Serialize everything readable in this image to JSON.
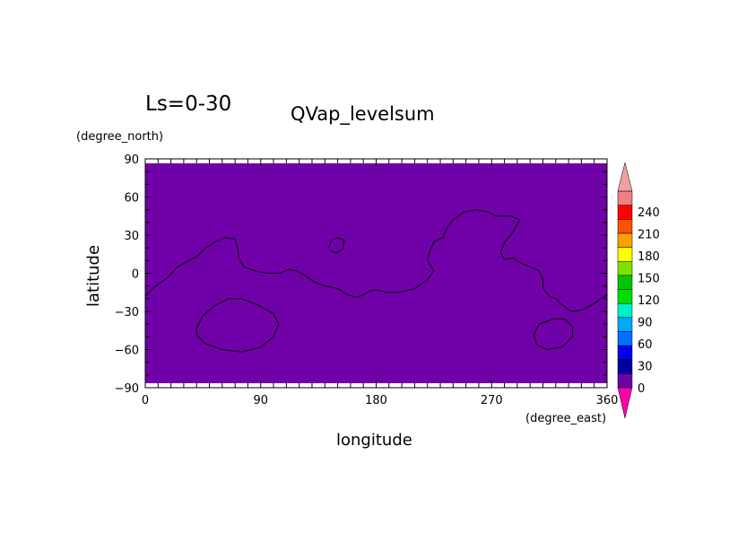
{
  "chart_data": {
    "type": "heatmap",
    "title": "QVap_levelsum",
    "subtitle": "Ls=0-30",
    "xlabel": "longitude",
    "ylabel": "latitude",
    "xunit": "(degree_east)",
    "yunit": "(degree_north)",
    "xlim": [
      0,
      360
    ],
    "ylim": [
      -90,
      90
    ],
    "xticks": [
      "0",
      "90",
      "180",
      "270",
      "360"
    ],
    "yticks": [
      "90",
      "60",
      "30",
      "0",
      "−30",
      "−60",
      "−90"
    ],
    "field_value": "0",
    "field_color": "#7000a8",
    "colorbar": {
      "labels": [
        "0",
        "30",
        "60",
        "90",
        "120",
        "150",
        "180",
        "210",
        "240"
      ],
      "colors": [
        "#7000a8",
        "#0000a0",
        "#0000f0",
        "#0070ff",
        "#00a8ff",
        "#00f0c8",
        "#00e000",
        "#00c800",
        "#80e000",
        "#ffff00",
        "#ffa000",
        "#ff5000",
        "#ff0000",
        "#f08080"
      ],
      "under_color": "#ff00aa",
      "over_color": "#f0a0a0"
    },
    "contours": [
      {
        "name": "continent-outline",
        "points": [
          [
            0,
            -18
          ],
          [
            8,
            -10
          ],
          [
            18,
            -3
          ],
          [
            25,
            5
          ],
          [
            32,
            9
          ],
          [
            40,
            13
          ],
          [
            47,
            20
          ],
          [
            55,
            25
          ],
          [
            63,
            28
          ],
          [
            70,
            27
          ],
          [
            72,
            20
          ],
          [
            73,
            12
          ],
          [
            77,
            5
          ],
          [
            85,
            2
          ],
          [
            95,
            0
          ],
          [
            105,
            0
          ],
          [
            112,
            3
          ],
          [
            118,
            2
          ],
          [
            125,
            -2
          ],
          [
            132,
            -7
          ],
          [
            140,
            -10
          ],
          [
            150,
            -12
          ],
          [
            158,
            -17
          ],
          [
            165,
            -19
          ],
          [
            170,
            -17
          ],
          [
            175,
            -14
          ],
          [
            180,
            -13
          ],
          [
            188,
            -15
          ],
          [
            198,
            -15
          ],
          [
            210,
            -12
          ],
          [
            220,
            -5
          ],
          [
            225,
            2
          ],
          [
            220,
            10
          ],
          [
            222,
            18
          ],
          [
            225,
            25
          ],
          [
            232,
            28
          ],
          [
            235,
            35
          ],
          [
            240,
            42
          ],
          [
            248,
            48
          ],
          [
            258,
            50
          ],
          [
            268,
            48
          ],
          [
            273,
            45
          ],
          [
            285,
            45
          ],
          [
            292,
            42
          ],
          [
            287,
            33
          ],
          [
            280,
            24
          ],
          [
            277,
            16
          ],
          [
            280,
            11
          ],
          [
            287,
            12
          ],
          [
            293,
            8
          ],
          [
            300,
            5
          ],
          [
            307,
            2
          ],
          [
            310,
            -5
          ],
          [
            310,
            -12
          ],
          [
            315,
            -18
          ],
          [
            320,
            -20
          ],
          [
            325,
            -25
          ],
          [
            332,
            -30
          ],
          [
            340,
            -29
          ],
          [
            348,
            -25
          ],
          [
            355,
            -20
          ],
          [
            360,
            -17
          ]
        ]
      },
      {
        "name": "island",
        "points": [
          [
            143,
            20
          ],
          [
            145,
            26
          ],
          [
            150,
            28
          ],
          [
            155,
            26
          ],
          [
            154,
            19
          ],
          [
            149,
            16
          ],
          [
            144,
            18
          ]
        ]
      },
      {
        "name": "southern-basin-west",
        "points": [
          [
            40,
            -43
          ],
          [
            45,
            -33
          ],
          [
            55,
            -25
          ],
          [
            65,
            -20
          ],
          [
            75,
            -20
          ],
          [
            88,
            -25
          ],
          [
            100,
            -32
          ],
          [
            104,
            -40
          ],
          [
            100,
            -50
          ],
          [
            90,
            -58
          ],
          [
            75,
            -62
          ],
          [
            60,
            -60
          ],
          [
            46,
            -55
          ],
          [
            40,
            -48
          ],
          [
            40,
            -43
          ]
        ]
      },
      {
        "name": "southern-basin-east",
        "points": [
          [
            303,
            -48
          ],
          [
            307,
            -40
          ],
          [
            318,
            -36
          ],
          [
            327,
            -36
          ],
          [
            333,
            -42
          ],
          [
            333,
            -50
          ],
          [
            325,
            -58
          ],
          [
            313,
            -60
          ],
          [
            305,
            -56
          ],
          [
            303,
            -48
          ]
        ]
      }
    ]
  }
}
